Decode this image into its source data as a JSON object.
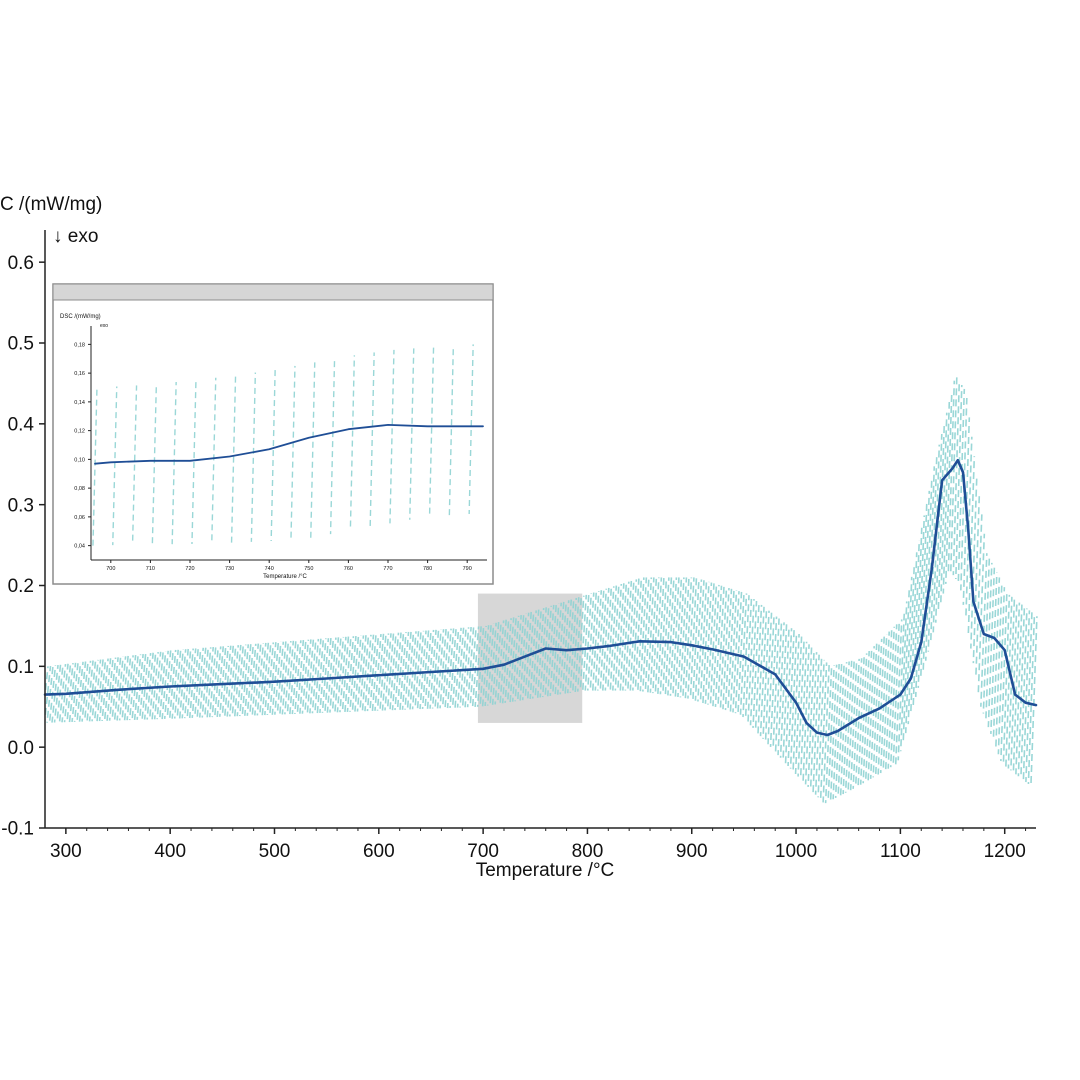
{
  "chart_data": {
    "type": "line",
    "xlabel": "Temperature /°C",
    "ylabel": "C /(mW/mg)",
    "ylabel_note": "↓ exo",
    "xlim": [
      280,
      1230
    ],
    "ylim": [
      -0.1,
      0.62
    ],
    "xticks": [
      300,
      400,
      500,
      600,
      700,
      800,
      900,
      1000,
      1100,
      1200
    ],
    "yticks": [
      -0.1,
      0.0,
      0.1,
      0.2,
      0.3,
      0.4,
      0.5,
      0.6
    ],
    "ytick_labels": [
      "-0.1",
      "0.0",
      "0.1",
      "0.2",
      "0.3",
      "0.4",
      "0.5",
      "0.6"
    ],
    "colors": {
      "mean": "#1f4e96",
      "band": "#8fd3d3",
      "highlight": "#d0d0d0",
      "axis": "#222222"
    },
    "highlight_range": {
      "x": [
        695,
        795
      ],
      "y": [
        0.03,
        0.19
      ]
    },
    "series": [
      {
        "x": [
          280,
          300,
          350,
          400,
          450,
          500,
          550,
          600,
          650,
          700,
          720,
          740,
          760,
          780,
          800,
          820,
          850,
          880,
          900,
          920,
          950,
          980,
          1000,
          1010,
          1020,
          1030,
          1040,
          1060,
          1080,
          1100,
          1110,
          1120,
          1130,
          1140,
          1150,
          1155,
          1160,
          1165,
          1170,
          1180,
          1190,
          1200,
          1210,
          1220,
          1230
        ],
        "values": [
          0.065,
          0.066,
          0.071,
          0.075,
          0.078,
          0.081,
          0.085,
          0.089,
          0.093,
          0.097,
          0.102,
          0.112,
          0.122,
          0.12,
          0.122,
          0.125,
          0.131,
          0.13,
          0.126,
          0.121,
          0.112,
          0.09,
          0.055,
          0.03,
          0.018,
          0.015,
          0.02,
          0.036,
          0.048,
          0.065,
          0.085,
          0.13,
          0.22,
          0.33,
          0.345,
          0.355,
          0.34,
          0.27,
          0.18,
          0.14,
          0.135,
          0.12,
          0.065,
          0.055,
          0.052
        ]
      }
    ],
    "band": {
      "x": [
        280,
        400,
        500,
        600,
        700,
        750,
        800,
        850,
        900,
        950,
        1000,
        1030,
        1060,
        1100,
        1130,
        1150,
        1160,
        1180,
        1200,
        1230
      ],
      "upper": [
        0.1,
        0.12,
        0.13,
        0.14,
        0.15,
        0.17,
        0.19,
        0.21,
        0.21,
        0.19,
        0.14,
        0.1,
        0.11,
        0.16,
        0.35,
        0.46,
        0.44,
        0.24,
        0.19,
        0.16
      ],
      "lower": [
        0.03,
        0.035,
        0.04,
        0.045,
        0.05,
        0.06,
        0.07,
        0.07,
        0.06,
        0.04,
        -0.03,
        -0.07,
        -0.05,
        -0.02,
        0.12,
        0.22,
        0.2,
        0.05,
        -0.02,
        -0.05
      ]
    },
    "inset": {
      "ylabel": "DSC /(mW/mg)",
      "ylabel_note": "exo",
      "xlabel": "Temperature /°C",
      "xlim": [
        695,
        795
      ],
      "ylim": [
        0.03,
        0.19
      ],
      "xticks": [
        700,
        710,
        720,
        730,
        740,
        750,
        760,
        770,
        780,
        790
      ],
      "yticks": [
        0.04,
        0.06,
        0.08,
        0.1,
        0.12,
        0.14,
        0.16,
        0.18
      ],
      "ytick_labels": [
        "0,04",
        "0,06",
        "0,08",
        "0,10",
        "0,12",
        "0,14",
        "0,16",
        "0,18"
      ],
      "series": [
        {
          "x": [
            696,
            700,
            710,
            720,
            730,
            740,
            750,
            760,
            770,
            780,
            790,
            794
          ],
          "values": [
            0.097,
            0.098,
            0.099,
            0.099,
            0.102,
            0.107,
            0.115,
            0.121,
            0.124,
            0.123,
            0.123,
            0.123
          ]
        }
      ],
      "band": {
        "x": [
          696,
          710,
          720,
          730,
          740,
          750,
          760,
          770,
          780,
          790,
          794
        ],
        "upper": [
          0.15,
          0.152,
          0.155,
          0.158,
          0.162,
          0.167,
          0.172,
          0.176,
          0.178,
          0.18,
          0.18
        ],
        "lower": [
          0.04,
          0.041,
          0.041,
          0.042,
          0.043,
          0.045,
          0.05,
          0.055,
          0.06,
          0.062,
          0.062
        ]
      }
    }
  }
}
